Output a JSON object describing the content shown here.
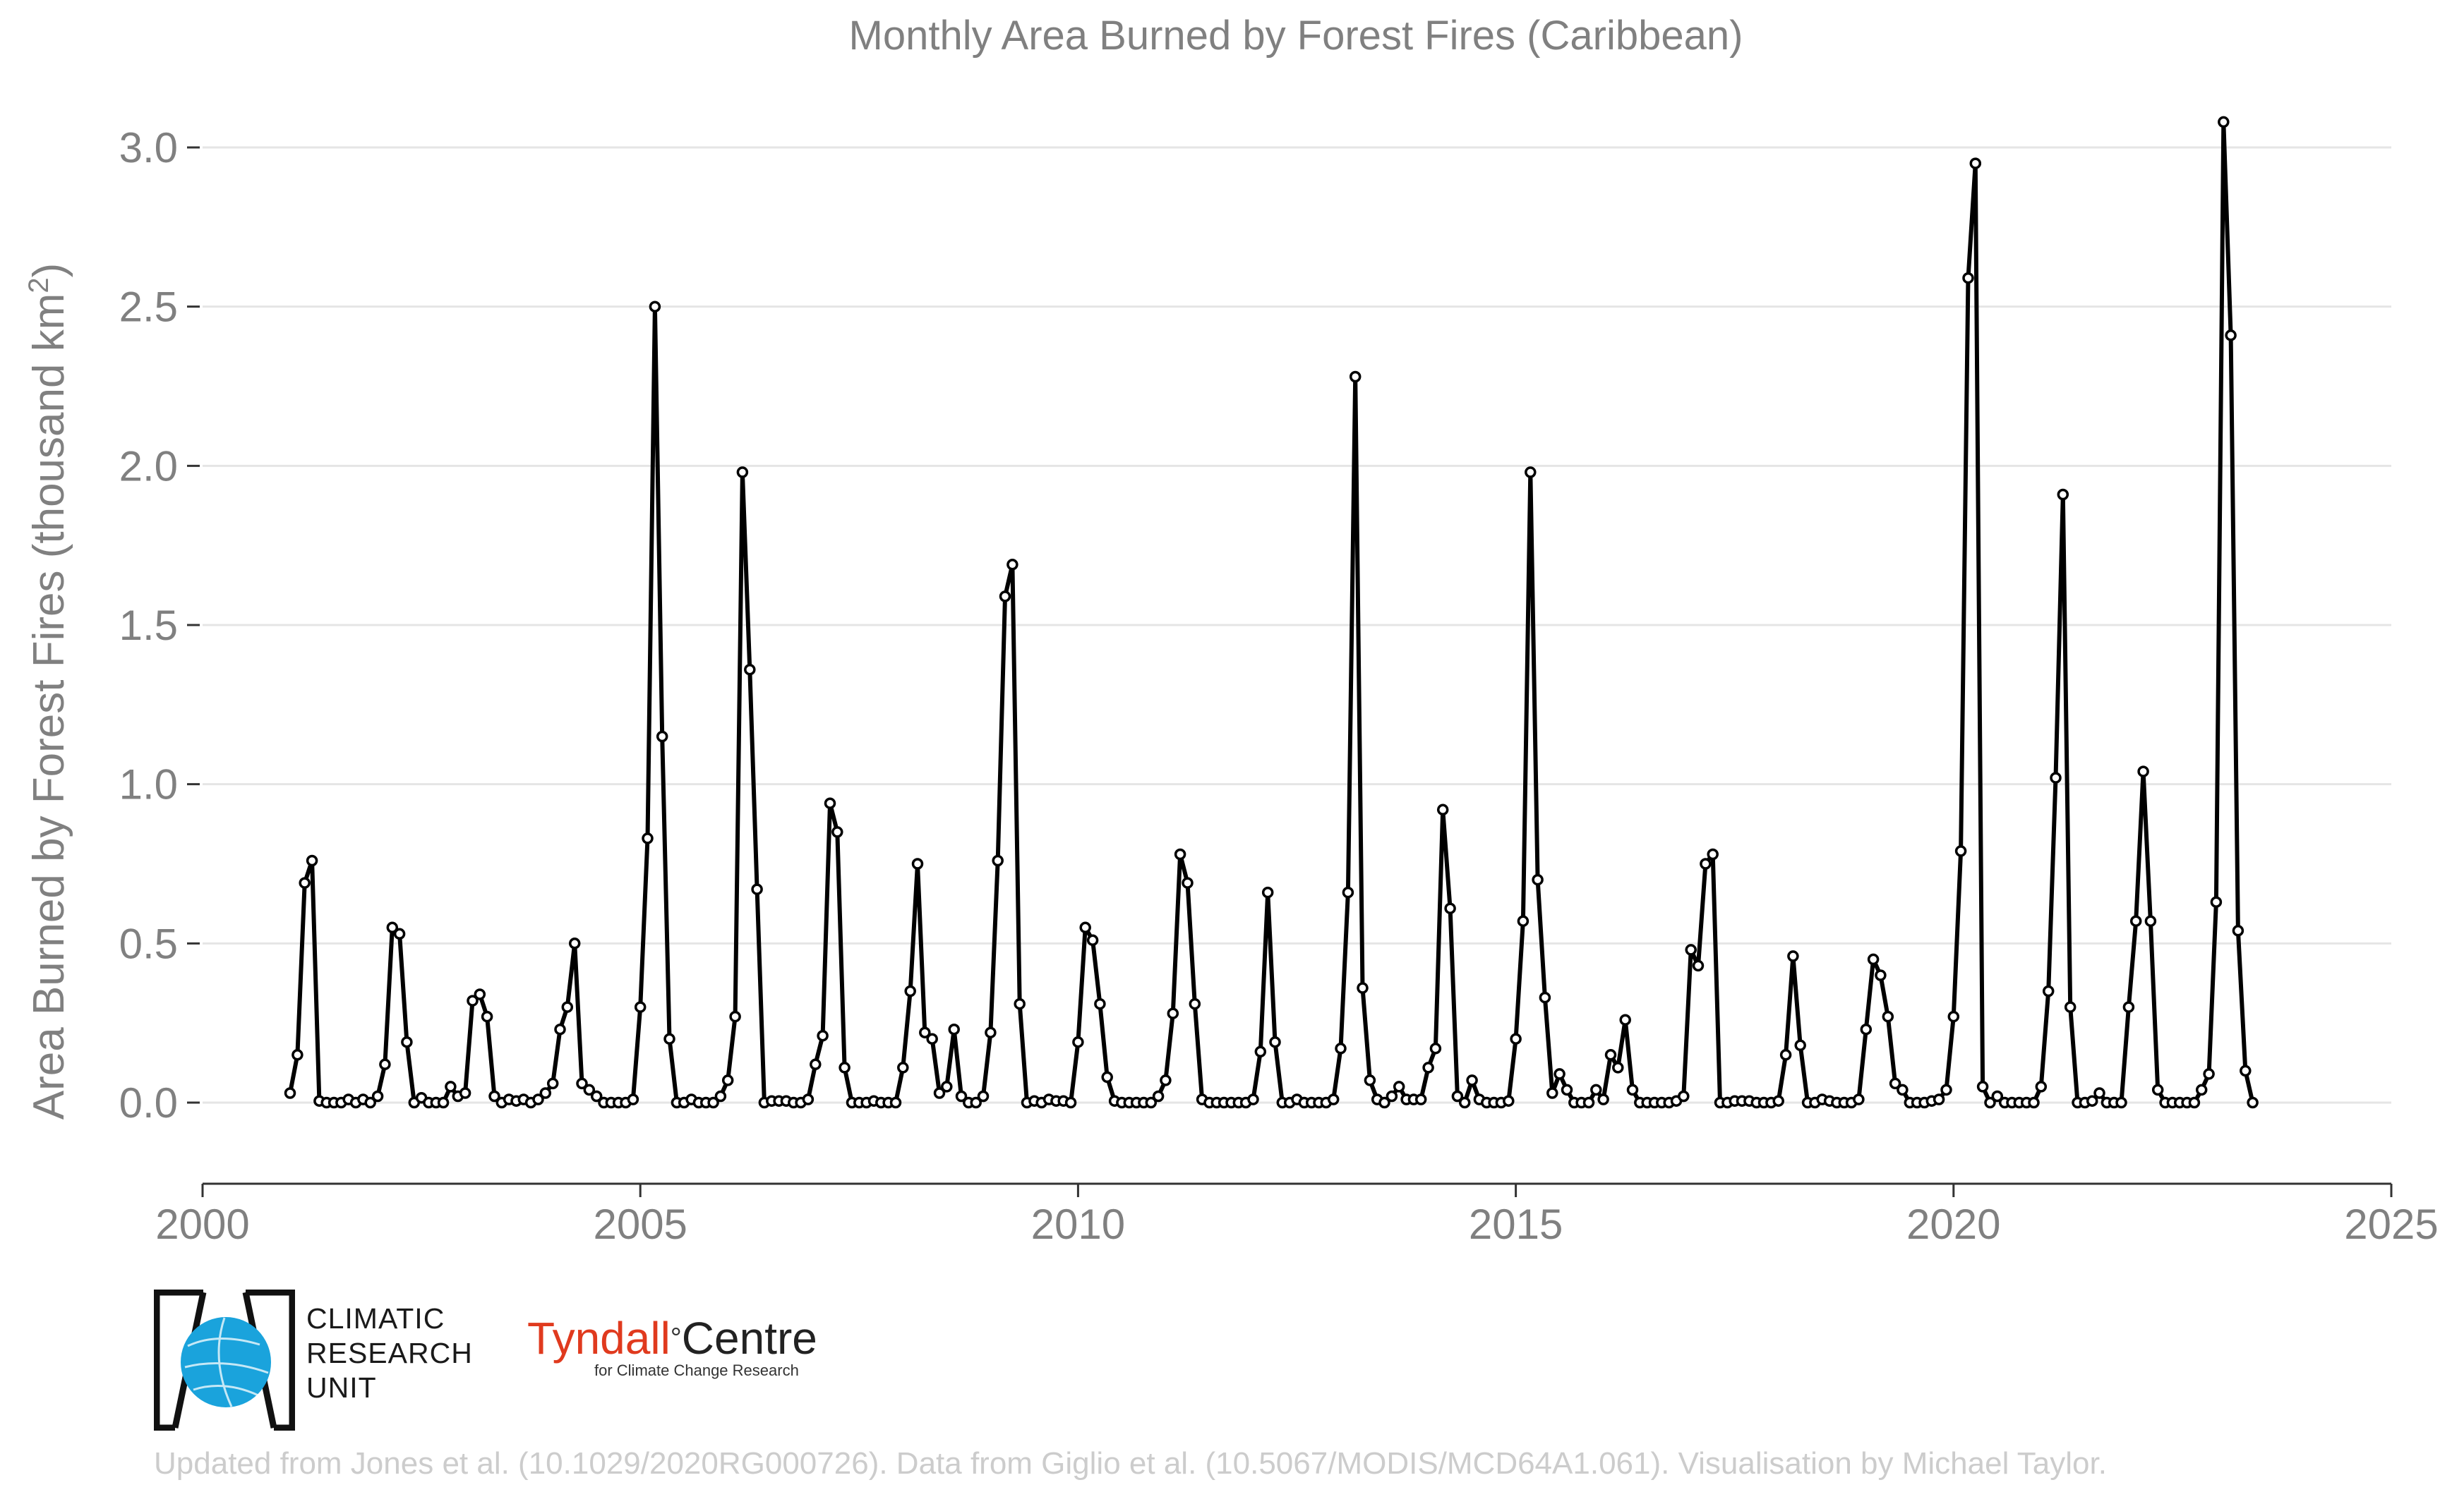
{
  "chart_data": {
    "type": "line",
    "title": "Monthly Area Burned by Forest Fires (Caribbean)",
    "ylabel": "Area Burned by Forest Fires (thousand km",
    "ylabel_superscript": "2",
    "ylabel_close": ")",
    "xlabel": "",
    "xlim": [
      2000,
      2025
    ],
    "ylim": [
      -0.25,
      3.15
    ],
    "x_ticks": [
      "2000",
      "2005",
      "2010",
      "2015",
      "2020",
      "2025"
    ],
    "y_ticks": [
      "0.0",
      "0.5",
      "1.0",
      "1.5",
      "2.0",
      "2.5",
      "3.0"
    ],
    "grid": "horizontal",
    "line_color": "#000000",
    "marker_fill": "#ffffff",
    "series": [
      {
        "start": "2001-01",
        "frequency": "monthly",
        "values": [
          0.03,
          0.15,
          0.69,
          0.76,
          0.005,
          0,
          0,
          0,
          0.01,
          0,
          0.01,
          0,
          0.02,
          0.12,
          0.55,
          0.53,
          0.19,
          0,
          0.015,
          0,
          0,
          0,
          0.05,
          0.02,
          0.03,
          0.32,
          0.34,
          0.27,
          0.02,
          0,
          0.01,
          0.005,
          0.01,
          0,
          0.01,
          0.03,
          0.06,
          0.23,
          0.3,
          0.5,
          0.06,
          0.04,
          0.02,
          0,
          0,
          0,
          0,
          0.01,
          0.3,
          0.83,
          2.5,
          1.15,
          0.2,
          0,
          0,
          0.01,
          0,
          0,
          0,
          0.02,
          0.07,
          0.27,
          1.98,
          1.36,
          0.67,
          0,
          0.005,
          0.005,
          0.005,
          0,
          0,
          0.01,
          0.12,
          0.21,
          0.94,
          0.85,
          0.11,
          0,
          0,
          0,
          0.005,
          0,
          0,
          0,
          0.11,
          0.35,
          0.75,
          0.22,
          0.2,
          0.03,
          0.05,
          0.23,
          0.02,
          0,
          0,
          0.02,
          0.22,
          0.76,
          1.59,
          1.69,
          0.31,
          0,
          0.005,
          0,
          0.01,
          0.005,
          0.005,
          0,
          0.19,
          0.55,
          0.51,
          0.31,
          0.08,
          0.005,
          0,
          0,
          0,
          0,
          0,
          0.02,
          0.07,
          0.28,
          0.78,
          0.69,
          0.31,
          0.01,
          0,
          0,
          0,
          0,
          0,
          0,
          0.01,
          0.16,
          0.66,
          0.19,
          0,
          0,
          0.01,
          0,
          0,
          0,
          0,
          0.01,
          0.17,
          0.66,
          2.28,
          0.36,
          0.07,
          0.01,
          0,
          0.02,
          0.05,
          0.01,
          0.01,
          0.01,
          0.11,
          0.17,
          0.92,
          0.61,
          0.02,
          0,
          0.07,
          0.01,
          0,
          0,
          0,
          0.005,
          0.2,
          0.57,
          1.98,
          0.7,
          0.33,
          0.03,
          0.09,
          0.04,
          0,
          0,
          0,
          0.04,
          0.01,
          0.15,
          0.11,
          0.26,
          0.04,
          0,
          0,
          0,
          0,
          0,
          0.005,
          0.02,
          0.48,
          0.43,
          0.75,
          0.78,
          0,
          0,
          0.005,
          0.005,
          0.005,
          0,
          0,
          0,
          0.005,
          0.15,
          0.46,
          0.18,
          0,
          0,
          0.01,
          0.005,
          0,
          0,
          0,
          0.01,
          0.23,
          0.45,
          0.4,
          0.27,
          0.06,
          0.04,
          0,
          0,
          0,
          0.005,
          0.01,
          0.04,
          0.27,
          0.79,
          2.59,
          2.95,
          0.05,
          0,
          0.02,
          0,
          0,
          0,
          0,
          0,
          0.05,
          0.35,
          1.02,
          1.91,
          0.3,
          0,
          0,
          0.005,
          0.03,
          0,
          0,
          0,
          0.3,
          0.57,
          1.04,
          0.57,
          0.04,
          0,
          0,
          0,
          0,
          0,
          0.04,
          0.09,
          0.63,
          3.08,
          2.41,
          0.54,
          0.1,
          0
        ]
      }
    ]
  },
  "logos": {
    "cru_lines": [
      "CLIMATIC",
      "RESEARCH",
      "UNIT"
    ],
    "tyndall_part1": "Tyndall",
    "tyndall_degree": "°",
    "tyndall_part2": "Centre",
    "tyndall_sub": "for Climate Change Research"
  },
  "credit": "Updated from Jones et al. (10.1029/2020RG000726). Data from Giglio et al. (10.5067/MODIS/MCD64A1.061). Visualisation by Michael Taylor.",
  "colors": {
    "text_gray": "#808080",
    "grid": "#e5e5e5",
    "cru_blue": "#1aa3dc",
    "tyndall_red": "#e03a1e",
    "credit_gray": "#cccccc"
  }
}
